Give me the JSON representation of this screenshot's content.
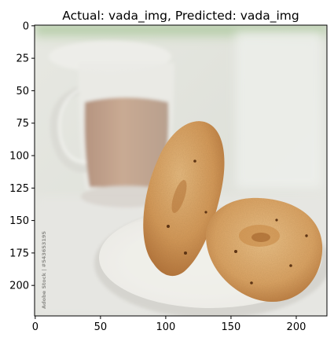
{
  "chart_data": {
    "type": "image",
    "title": "Actual: vada_img, Predicted: vada_img",
    "xlabel": "",
    "ylabel": "",
    "xlim": [
      -0.5,
      223.5
    ],
    "ylim": [
      223.5,
      -0.5
    ],
    "x_ticks": [
      0,
      50,
      100,
      150,
      200
    ],
    "x_tick_labels": [
      "0",
      "50",
      "100",
      "150",
      "200"
    ],
    "y_ticks": [
      0,
      25,
      50,
      75,
      100,
      125,
      150,
      175,
      200
    ],
    "y_tick_labels": [
      "0",
      "25",
      "50",
      "75",
      "100",
      "125",
      "150",
      "175",
      "200"
    ],
    "grid": false,
    "image_content": {
      "watermark_text": "Adobe Stock | #543653195"
    }
  },
  "colors": {
    "axes_spine": "#000000",
    "tick_label": "#000000",
    "background": "#ffffff",
    "wall": "#e4e6e0",
    "green_top": "#9bc089",
    "plate": "#f1f0ec",
    "table": "#ebebe7",
    "tea": "#c3a48e",
    "vada_light": "#e1b278",
    "vada_mid": "#c9894a",
    "vada_dark": "#8f5224"
  }
}
